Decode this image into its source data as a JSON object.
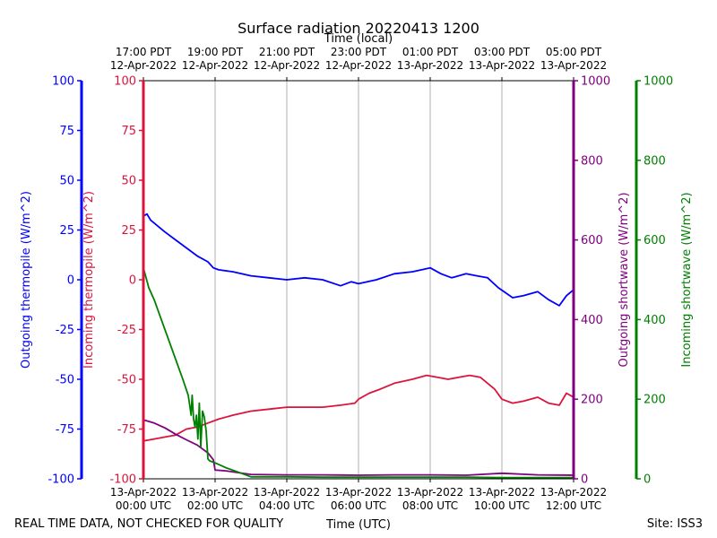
{
  "chart_data": {
    "type": "line",
    "title": "Surface radiation 20220413 1200",
    "top_axis_label": "Time (local)",
    "bottom_axis_label": "Time (UTC)",
    "footer_left": "REAL TIME DATA, NOT CHECKED FOR QUALITY",
    "footer_right": "Site: ISS3",
    "x_range_hours_utc": [
      0,
      12
    ],
    "top_ticks": [
      {
        "h": 0,
        "l1": "17:00 PDT",
        "l2": "12-Apr-2022"
      },
      {
        "h": 2,
        "l1": "19:00 PDT",
        "l2": "12-Apr-2022"
      },
      {
        "h": 4,
        "l1": "21:00 PDT",
        "l2": "12-Apr-2022"
      },
      {
        "h": 6,
        "l1": "23:00 PDT",
        "l2": "12-Apr-2022"
      },
      {
        "h": 8,
        "l1": "01:00 PDT",
        "l2": "13-Apr-2022"
      },
      {
        "h": 10,
        "l1": "03:00 PDT",
        "l2": "13-Apr-2022"
      },
      {
        "h": 12,
        "l1": "05:00 PDT",
        "l2": "13-Apr-2022"
      }
    ],
    "bottom_ticks": [
      {
        "h": 0,
        "l1": "13-Apr-2022",
        "l2": "00:00 UTC"
      },
      {
        "h": 2,
        "l1": "13-Apr-2022",
        "l2": "02:00 UTC"
      },
      {
        "h": 4,
        "l1": "13-Apr-2022",
        "l2": "04:00 UTC"
      },
      {
        "h": 6,
        "l1": "13-Apr-2022",
        "l2": "06:00 UTC"
      },
      {
        "h": 8,
        "l1": "13-Apr-2022",
        "l2": "08:00 UTC"
      },
      {
        "h": 10,
        "l1": "13-Apr-2022",
        "l2": "10:00 UTC"
      },
      {
        "h": 12,
        "l1": "13-Apr-2022",
        "l2": "12:00 UTC"
      }
    ],
    "axes": [
      {
        "id": "out_thermo",
        "label": "Outgoing thermopile (W/m^2)",
        "color": "#0000ff",
        "range": [
          -100,
          100
        ],
        "ticks": [
          -100,
          -75,
          -50,
          -25,
          0,
          25,
          50,
          75,
          100
        ]
      },
      {
        "id": "in_thermo",
        "label": "Incoming thermopile (W/m^2)",
        "color": "#dc143c",
        "range": [
          -100,
          100
        ],
        "ticks": [
          -100,
          -75,
          -50,
          -25,
          0,
          25,
          50,
          75,
          100
        ]
      },
      {
        "id": "out_sw",
        "label": "Outgoing shortwave (W/m^2)",
        "color": "#800080",
        "range": [
          0,
          1000
        ],
        "ticks": [
          0,
          200,
          400,
          600,
          800,
          1000
        ]
      },
      {
        "id": "in_sw",
        "label": "Incoming shortwave (W/m^2)",
        "color": "#008000",
        "range": [
          0,
          1000
        ],
        "ticks": [
          0,
          200,
          400,
          600,
          800,
          1000
        ]
      }
    ],
    "series": [
      {
        "name": "Outgoing thermopile",
        "axis": "out_thermo",
        "color": "#0000ff",
        "x": [
          0,
          0.1,
          0.2,
          0.4,
          0.6,
          0.9,
          1.2,
          1.5,
          1.8,
          1.95,
          2.1,
          2.5,
          3,
          3.5,
          4,
          4.5,
          5,
          5.5,
          5.8,
          6,
          6.5,
          7,
          7.5,
          8,
          8.3,
          8.6,
          9,
          9.3,
          9.6,
          9.9,
          10.3,
          10.6,
          11,
          11.3,
          11.6,
          11.8,
          12
        ],
        "y": [
          32,
          33,
          30,
          27,
          24,
          20,
          16,
          12,
          9,
          6,
          5,
          4,
          2,
          1,
          0,
          1,
          0,
          -3,
          -1,
          -2,
          0,
          3,
          4,
          6,
          3,
          1,
          3,
          2,
          1,
          -4,
          -9,
          -8,
          -6,
          -10,
          -13,
          -8,
          -5
        ]
      },
      {
        "name": "Incoming thermopile",
        "axis": "in_thermo",
        "color": "#dc143c",
        "x": [
          0,
          0.3,
          0.6,
          0.9,
          1.2,
          1.5,
          1.8,
          2.1,
          2.5,
          3,
          3.5,
          4,
          4.5,
          5,
          5.5,
          5.9,
          6,
          6.3,
          6.6,
          7,
          7.5,
          7.9,
          8.2,
          8.5,
          8.8,
          9.1,
          9.4,
          9.6,
          9.8,
          10,
          10.3,
          10.6,
          11,
          11.3,
          11.6,
          11.8,
          12
        ],
        "y": [
          -81,
          -80,
          -79,
          -78,
          -75,
          -74,
          -72,
          -70,
          -68,
          -66,
          -65,
          -64,
          -64,
          -64,
          -63,
          -62,
          -60,
          -57,
          -55,
          -52,
          -50,
          -48,
          -49,
          -50,
          -49,
          -48,
          -49,
          -52,
          -55,
          -60,
          -62,
          -61,
          -59,
          -62,
          -63,
          -57,
          -59
        ]
      },
      {
        "name": "Outgoing shortwave",
        "axis": "out_sw",
        "color": "#800080",
        "x": [
          0,
          0.3,
          0.6,
          0.9,
          1.2,
          1.5,
          1.8,
          1.95,
          2.0,
          2.3,
          2.6,
          3,
          4,
          5,
          6,
          7,
          8,
          9,
          10,
          11,
          12
        ],
        "y": [
          148,
          140,
          128,
          112,
          98,
          85,
          65,
          48,
          22,
          20,
          16,
          11,
          10,
          10,
          9,
          10,
          10,
          9,
          14,
          10,
          9
        ]
      },
      {
        "name": "Incoming shortwave",
        "axis": "in_sw",
        "color": "#008000",
        "x": [
          0,
          0.15,
          0.3,
          0.5,
          0.7,
          0.9,
          1.1,
          1.25,
          1.3,
          1.33,
          1.36,
          1.4,
          1.44,
          1.48,
          1.52,
          1.56,
          1.6,
          1.65,
          1.7,
          1.75,
          1.8,
          1.85,
          2.0,
          2.3,
          2.7,
          3,
          4,
          5,
          6,
          7,
          8,
          9,
          10,
          11,
          12
        ],
        "y": [
          530,
          480,
          450,
          400,
          350,
          300,
          250,
          210,
          180,
          160,
          210,
          150,
          130,
          160,
          100,
          190,
          80,
          170,
          155,
          120,
          50,
          45,
          40,
          28,
          15,
          5,
          5,
          4,
          4,
          4,
          4,
          4,
          3,
          3,
          3
        ]
      }
    ]
  }
}
